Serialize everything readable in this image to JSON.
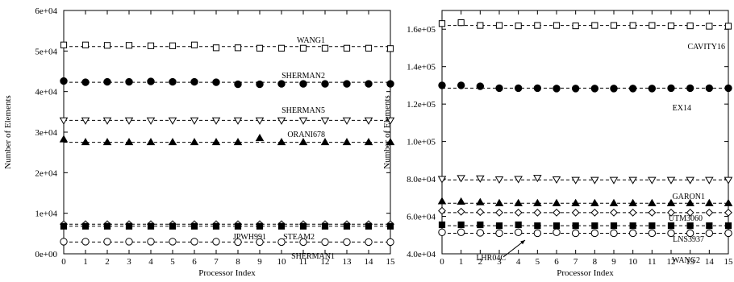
{
  "chart_data": [
    {
      "type": "scatter",
      "title": "",
      "xlabel": "Processor Index",
      "ylabel": "Number of Elements",
      "xlim": [
        0,
        15
      ],
      "ylim": [
        0,
        60000
      ],
      "x": [
        0,
        1,
        2,
        3,
        4,
        5,
        6,
        7,
        8,
        9,
        10,
        11,
        12,
        13,
        14,
        15
      ],
      "xticks": [
        0,
        1,
        2,
        3,
        4,
        5,
        6,
        7,
        8,
        9,
        10,
        11,
        12,
        13,
        14,
        15
      ],
      "xtick_labels": [
        "0",
        "1",
        "2",
        "3",
        "4",
        "5",
        "6",
        "7",
        "8",
        "9",
        "10",
        "11",
        "12",
        "13",
        "14",
        "15"
      ],
      "yticks": [
        0,
        10000,
        20000,
        30000,
        40000,
        50000,
        60000
      ],
      "ytick_labels": [
        "0e+00",
        "1e+04",
        "2e+04",
        "3e+04",
        "4e+04",
        "5e+04",
        "6e+04"
      ],
      "grid": false,
      "series": [
        {
          "name": "WANG1",
          "marker": "open-square",
          "mean": 51100,
          "values": [
            51500,
            51500,
            51400,
            51400,
            51300,
            51300,
            51500,
            50800,
            50800,
            50700,
            50700,
            50700,
            50700,
            50700,
            50700,
            50600
          ]
        },
        {
          "name": "SHERMAN2",
          "marker": "filled-circle",
          "mean": 42300,
          "values": [
            42600,
            42300,
            42400,
            42400,
            42500,
            42400,
            42400,
            42300,
            41800,
            41800,
            41900,
            41900,
            41900,
            41900,
            41900,
            41900
          ]
        },
        {
          "name": "SHERMAN5",
          "marker": "open-triangle-down",
          "mean": 32900,
          "values": [
            32900,
            32900,
            32900,
            32900,
            32900,
            32900,
            32900,
            32900,
            32900,
            32900,
            32900,
            32900,
            32900,
            32900,
            32900,
            32900
          ]
        },
        {
          "name": "ORANI678",
          "marker": "filled-triangle-up",
          "mean": 27500,
          "values": [
            28200,
            27500,
            27500,
            27500,
            27500,
            27500,
            27500,
            27500,
            27500,
            28500,
            27500,
            27500,
            27500,
            27500,
            27500,
            27500
          ]
        },
        {
          "name": "JPWH991",
          "marker": "open-diamond",
          "mean": 7300,
          "values": [
            7300,
            7300,
            7300,
            7300,
            7300,
            7300,
            7300,
            7300,
            7300,
            7300,
            7300,
            7300,
            7300,
            7300,
            7300,
            7300
          ]
        },
        {
          "name": "STEAM2",
          "marker": "filled-square",
          "mean": 6800,
          "values": [
            6800,
            6800,
            6800,
            6800,
            6800,
            6800,
            6800,
            6800,
            6800,
            6800,
            6800,
            6800,
            6800,
            6800,
            6800,
            6800
          ]
        },
        {
          "name": "SHERMAN1",
          "marker": "open-circle",
          "mean": 2900,
          "values": [
            3000,
            3000,
            3000,
            3000,
            3000,
            3000,
            3000,
            3000,
            2900,
            2900,
            2900,
            2900,
            2900,
            2900,
            2900,
            2900
          ]
        }
      ]
    },
    {
      "type": "scatter",
      "title": "",
      "xlabel": "Processor Index",
      "ylabel": "Number of Elements",
      "xlim": [
        0,
        15
      ],
      "ylim": [
        40000,
        170000
      ],
      "x": [
        0,
        1,
        2,
        3,
        4,
        5,
        6,
        7,
        8,
        9,
        10,
        11,
        12,
        13,
        14,
        15
      ],
      "xticks": [
        0,
        1,
        2,
        3,
        4,
        5,
        6,
        7,
        8,
        9,
        10,
        11,
        12,
        13,
        14,
        15
      ],
      "xtick_labels": [
        "0",
        "1",
        "2",
        "3",
        "4",
        "5",
        "6",
        "7",
        "8",
        "9",
        "10",
        "11",
        "12",
        "13",
        "14",
        "15"
      ],
      "yticks": [
        40000,
        60000,
        80000,
        100000,
        120000,
        140000,
        160000
      ],
      "ytick_labels": [
        "4.0e+04",
        "6.0e+04",
        "8.0e+04",
        "1.0e+05",
        "1.2e+05",
        "1.4e+05",
        "1.6e+05"
      ],
      "grid": false,
      "series": [
        {
          "name": "CAVITY16",
          "marker": "open-square",
          "mean": 162000,
          "values": [
            163000,
            163500,
            162000,
            162000,
            161800,
            162000,
            162000,
            161800,
            162000,
            162000,
            162000,
            162000,
            161800,
            161800,
            161600,
            161600
          ]
        },
        {
          "name": "EX14",
          "marker": "filled-circle",
          "mean": 128500,
          "values": [
            130000,
            130000,
            129500,
            128500,
            128500,
            128500,
            128300,
            128300,
            128300,
            128300,
            128300,
            128300,
            128500,
            128500,
            128500,
            128500
          ]
        },
        {
          "name": "GARON1",
          "marker": "open-triangle-down",
          "mean": 79500,
          "values": [
            80000,
            80500,
            80300,
            79800,
            80000,
            80600,
            79800,
            79500,
            79500,
            79500,
            79500,
            79500,
            79500,
            79500,
            79500,
            79500
          ]
        },
        {
          "name": "UTM3060",
          "marker": "filled-triangle-up",
          "mean": 67000,
          "values": [
            68000,
            67800,
            67500,
            67000,
            67000,
            67000,
            67000,
            67000,
            67000,
            67000,
            67000,
            67000,
            67000,
            67000,
            67000,
            67000
          ]
        },
        {
          "name": "LNS3937",
          "marker": "open-diamond",
          "mean": 62000,
          "values": [
            63000,
            62500,
            62300,
            62000,
            62000,
            62000,
            62000,
            62000,
            62000,
            62000,
            62000,
            62000,
            62000,
            62000,
            62000,
            62000
          ]
        },
        {
          "name": "LHR04C",
          "marker": "filled-square",
          "mean": 55000,
          "values": [
            55500,
            55500,
            55500,
            55000,
            55500,
            55000,
            55000,
            55000,
            55000,
            55000,
            55000,
            55000,
            55000,
            55000,
            55000,
            55000
          ]
        },
        {
          "name": "WANG2",
          "marker": "open-circle",
          "mean": 51000,
          "values": [
            51500,
            51500,
            51200,
            51000,
            51500,
            51000,
            51500,
            51000,
            51000,
            51000,
            51000,
            51000,
            51000,
            51000,
            51000,
            51000
          ]
        }
      ]
    }
  ]
}
